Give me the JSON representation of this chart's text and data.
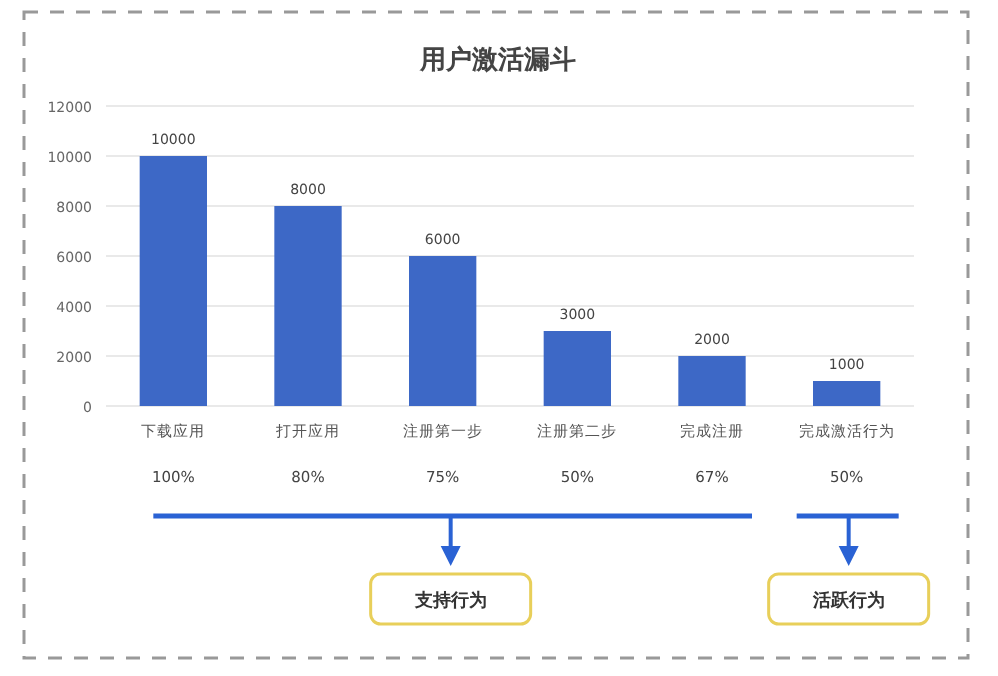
{
  "chart_data": {
    "type": "bar",
    "title": "用户激活漏斗",
    "categories": [
      "下载应用",
      "打开应用",
      "注册第一步",
      "注册第二步",
      "完成注册",
      "完成激活行为"
    ],
    "values": [
      10000,
      8000,
      6000,
      3000,
      2000,
      1000
    ],
    "color": "#3d68c6",
    "ylim": [
      0,
      12000
    ],
    "yticks": [
      0,
      2000,
      4000,
      6000,
      8000,
      10000,
      12000
    ],
    "grid": "y",
    "data_labels": true,
    "annotations": [
      "100%",
      "80%",
      "75%",
      "50%",
      "67%",
      "50%",
      "支持行为",
      "活跃行为"
    ]
  }
}
